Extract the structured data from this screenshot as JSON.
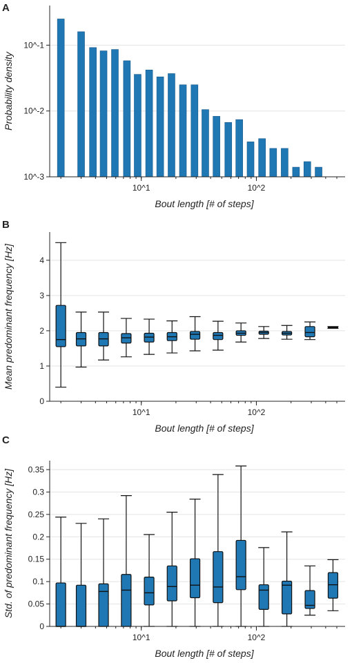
{
  "colors": {
    "bar_fill": "#1f77b4",
    "line": "#111111",
    "grid": "#e3e3e3",
    "text": "#222222"
  },
  "chart_data": [
    {
      "panel": "A",
      "type": "bar",
      "xlabel": "Bout length [# of steps]",
      "ylabel": "Probability density",
      "xscale": "log",
      "yscale": "log",
      "ylim": [
        0.001,
        0.4
      ],
      "x_tick_labels": [
        {
          "value": 10,
          "label": "10^1"
        },
        {
          "value": 100,
          "label": "10^2"
        }
      ],
      "y_tick_labels": [
        {
          "value": 0.001,
          "label": "10^-3"
        },
        {
          "value": 0.01,
          "label": "10^-2"
        },
        {
          "value": 0.1,
          "label": "10^-1"
        }
      ],
      "grid": "horizontal",
      "bars": [
        {
          "x": 2,
          "y": 0.25
        },
        {
          "x": 3,
          "y": 0.16
        },
        {
          "x": 3.8,
          "y": 0.092
        },
        {
          "x": 4.7,
          "y": 0.082
        },
        {
          "x": 5.9,
          "y": 0.086
        },
        {
          "x": 7.5,
          "y": 0.058
        },
        {
          "x": 9.3,
          "y": 0.036
        },
        {
          "x": 11.7,
          "y": 0.042
        },
        {
          "x": 14.6,
          "y": 0.033
        },
        {
          "x": 18.3,
          "y": 0.037
        },
        {
          "x": 23,
          "y": 0.025
        },
        {
          "x": 29,
          "y": 0.025
        },
        {
          "x": 36,
          "y": 0.0105
        },
        {
          "x": 45,
          "y": 0.0083
        },
        {
          "x": 57,
          "y": 0.0067
        },
        {
          "x": 71,
          "y": 0.0074
        },
        {
          "x": 89,
          "y": 0.0034
        },
        {
          "x": 112,
          "y": 0.0038
        },
        {
          "x": 140,
          "y": 0.0027
        },
        {
          "x": 176,
          "y": 0.0027
        },
        {
          "x": 221,
          "y": 0.0014
        },
        {
          "x": 277,
          "y": 0.0017
        },
        {
          "x": 347,
          "y": 0.0014
        }
      ]
    },
    {
      "panel": "B",
      "type": "box",
      "xlabel": "Bout length [# of steps]",
      "ylabel": "Mean predominant frequency [Hz]",
      "xscale": "log",
      "ylim": [
        0,
        4.8
      ],
      "x_tick_labels": [
        {
          "value": 10,
          "label": "10^1"
        },
        {
          "value": 100,
          "label": "10^2"
        }
      ],
      "y_tick_labels": [
        {
          "value": 0,
          "label": "0"
        },
        {
          "value": 1,
          "label": "1"
        },
        {
          "value": 2,
          "label": "2"
        },
        {
          "value": 3,
          "label": "3"
        },
        {
          "value": 4,
          "label": "4"
        }
      ],
      "grid": "horizontal",
      "boxes": [
        {
          "x": 2,
          "whislo": 0.4,
          "q1": 1.55,
          "med": 1.75,
          "q3": 2.72,
          "whishi": 4.5
        },
        {
          "x": 3,
          "whislo": 0.97,
          "q1": 1.57,
          "med": 1.77,
          "q3": 1.95,
          "whishi": 2.53
        },
        {
          "x": 4.7,
          "whislo": 1.17,
          "q1": 1.57,
          "med": 1.77,
          "q3": 1.95,
          "whishi": 2.53
        },
        {
          "x": 7.4,
          "whislo": 1.26,
          "q1": 1.65,
          "med": 1.8,
          "q3": 1.92,
          "whishi": 2.35
        },
        {
          "x": 11.7,
          "whislo": 1.33,
          "q1": 1.68,
          "med": 1.82,
          "q3": 1.93,
          "whishi": 2.33
        },
        {
          "x": 18.5,
          "whislo": 1.37,
          "q1": 1.72,
          "med": 1.83,
          "q3": 1.95,
          "whishi": 2.28
        },
        {
          "x": 29.3,
          "whislo": 1.43,
          "q1": 1.76,
          "med": 1.9,
          "q3": 1.98,
          "whishi": 2.4
        },
        {
          "x": 46.4,
          "whislo": 1.45,
          "q1": 1.75,
          "med": 1.87,
          "q3": 1.95,
          "whishi": 2.27
        },
        {
          "x": 73.5,
          "whislo": 1.68,
          "q1": 1.87,
          "med": 1.93,
          "q3": 2.0,
          "whishi": 2.22
        },
        {
          "x": 116,
          "whislo": 1.78,
          "q1": 1.9,
          "med": 1.95,
          "q3": 1.99,
          "whishi": 2.12
        },
        {
          "x": 184,
          "whislo": 1.76,
          "q1": 1.88,
          "med": 1.93,
          "q3": 1.98,
          "whishi": 2.15
        },
        {
          "x": 292,
          "whislo": 1.75,
          "q1": 1.83,
          "med": 1.95,
          "q3": 2.12,
          "whishi": 2.25
        },
        {
          "x": 463,
          "whislo": 2.07,
          "q1": 2.08,
          "med": 2.09,
          "q3": 2.11,
          "whishi": 2.12
        }
      ]
    },
    {
      "panel": "C",
      "type": "box",
      "xlabel": "Bout length [# of steps]",
      "ylabel": "Std. of predominant frequency [Hz]",
      "xscale": "log",
      "ylim": [
        0,
        0.37
      ],
      "x_tick_labels": [
        {
          "value": 10,
          "label": "10^1"
        },
        {
          "value": 100,
          "label": "10^2"
        }
      ],
      "y_tick_labels": [
        {
          "value": 0,
          "label": "0"
        },
        {
          "value": 0.05,
          "label": "0.05"
        },
        {
          "value": 0.1,
          "label": "0.1"
        },
        {
          "value": 0.15,
          "label": "0.15"
        },
        {
          "value": 0.2,
          "label": "0.2"
        },
        {
          "value": 0.25,
          "label": "0.25"
        },
        {
          "value": 0.3,
          "label": "0.3"
        },
        {
          "value": 0.35,
          "label": "0.35"
        }
      ],
      "grid": "horizontal",
      "boxes": [
        {
          "x": 2,
          "whislo": 0,
          "q1": 0,
          "med": 0,
          "q3": 0.097,
          "whishi": 0.244
        },
        {
          "x": 3,
          "whislo": 0,
          "q1": 0,
          "med": 0,
          "q3": 0.092,
          "whishi": 0.23
        },
        {
          "x": 4.7,
          "whislo": 0,
          "q1": 0,
          "med": 0.078,
          "q3": 0.095,
          "whishi": 0.24
        },
        {
          "x": 7.4,
          "whislo": 0,
          "q1": 0,
          "med": 0.081,
          "q3": 0.116,
          "whishi": 0.292
        },
        {
          "x": 11.7,
          "whislo": 0,
          "q1": 0.048,
          "med": 0.075,
          "q3": 0.11,
          "whishi": 0.205
        },
        {
          "x": 18.5,
          "whislo": 0,
          "q1": 0.057,
          "med": 0.089,
          "q3": 0.135,
          "whishi": 0.255
        },
        {
          "x": 29.3,
          "whislo": 0,
          "q1": 0.064,
          "med": 0.092,
          "q3": 0.151,
          "whishi": 0.284
        },
        {
          "x": 46.4,
          "whislo": 0,
          "q1": 0.053,
          "med": 0.088,
          "q3": 0.167,
          "whishi": 0.339
        },
        {
          "x": 73.5,
          "whislo": 0,
          "q1": 0.082,
          "med": 0.111,
          "q3": 0.192,
          "whishi": 0.358
        },
        {
          "x": 116,
          "whislo": 0,
          "q1": 0.038,
          "med": 0.081,
          "q3": 0.093,
          "whishi": 0.176
        },
        {
          "x": 184,
          "whislo": 0,
          "q1": 0.028,
          "med": 0.092,
          "q3": 0.101,
          "whishi": 0.211
        },
        {
          "x": 292,
          "whislo": 0.025,
          "q1": 0.04,
          "med": 0.047,
          "q3": 0.08,
          "whishi": 0.135
        },
        {
          "x": 463,
          "whislo": 0.035,
          "q1": 0.063,
          "med": 0.093,
          "q3": 0.12,
          "whishi": 0.149
        }
      ]
    }
  ]
}
